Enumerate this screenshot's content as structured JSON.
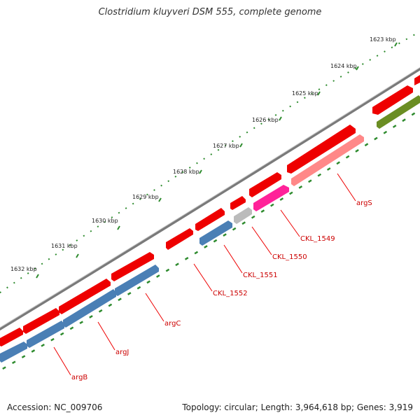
{
  "title": "Clostridium kluyveri DSM 555, complete genome",
  "footer": {
    "accession": "Accession: NC_009706",
    "topology": "Topology: circular; Length: 3,964,618 bp; Genes: 3,919"
  },
  "ticks": [
    "1623 kbp",
    "1624 kbp",
    "1625 kbp",
    "1626 kbp",
    "1627 kbp",
    "1628 kbp",
    "1629 kbp",
    "1630 kbp",
    "1631 kbp",
    "1632 kbp"
  ],
  "labels": [
    "argS",
    "CKL_1549",
    "CKL_1550",
    "CKL_1551",
    "CKL_1552",
    "argC",
    "argJ",
    "argB"
  ],
  "colors": {
    "backbone": "#7a7a7a",
    "cds": "#ee0000",
    "blue": "#4a7fb5",
    "pink": "#ff2299",
    "salmon": "#ff8888",
    "gray": "#bbbbbb",
    "olive": "#6b8e23",
    "tick": "#2e8b2e",
    "label": "#cc0000"
  }
}
